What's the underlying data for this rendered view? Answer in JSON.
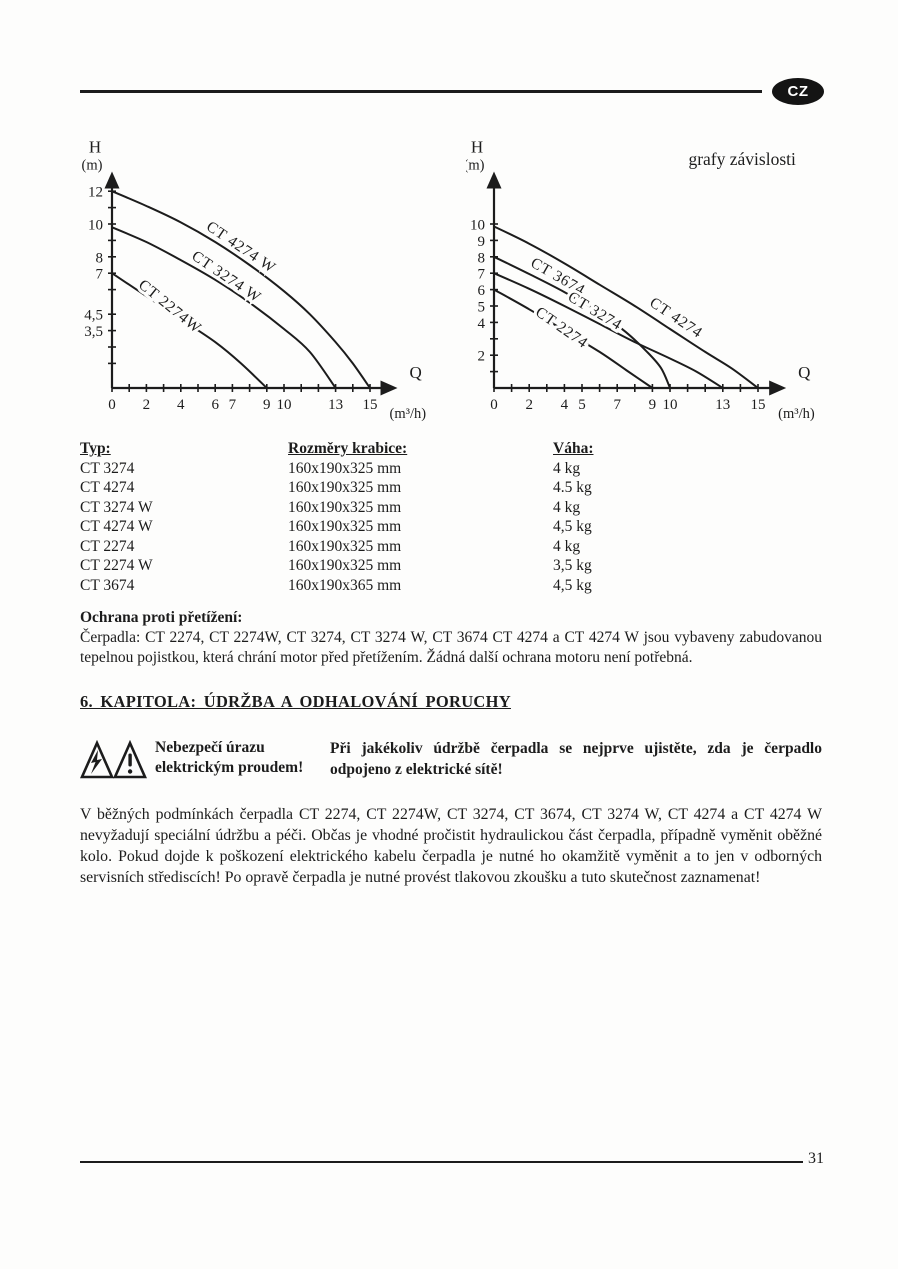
{
  "page": {
    "badge": "CZ",
    "number": "31"
  },
  "chart_data": [
    {
      "type": "line",
      "title": "",
      "ylabel": "H",
      "ylabel_unit": "(m)",
      "xlabel": "Q",
      "xlabel_unit": "(m³/h)",
      "xlim": [
        0,
        16.6
      ],
      "ylim": [
        0,
        13.2
      ],
      "grid": false,
      "xticks": [
        [
          0,
          "0"
        ],
        [
          1
        ],
        [
          2,
          "2"
        ],
        [
          3
        ],
        [
          4,
          "4"
        ],
        [
          5
        ],
        [
          6,
          "6"
        ],
        [
          7,
          "7"
        ],
        [
          8
        ],
        [
          9,
          "9"
        ],
        [
          10,
          "10"
        ],
        [
          11
        ],
        [
          12
        ],
        [
          13,
          "13"
        ],
        [
          14
        ],
        [
          15,
          "15"
        ]
      ],
      "yticks": [
        [
          12,
          "12"
        ],
        [
          11
        ],
        [
          10,
          "10"
        ],
        [
          9
        ],
        [
          8,
          "8"
        ],
        [
          7,
          "7"
        ],
        [
          6
        ],
        [
          4.5,
          "4,5"
        ],
        [
          3.5,
          "3,5"
        ],
        [
          2.5
        ],
        [
          1.5
        ]
      ],
      "series": [
        {
          "name": "CT 4274 W",
          "shutoff_head_m": 12,
          "max_flow_m3h": 15,
          "points": [
            [
              0,
              12
            ],
            [
              2,
              11.1
            ],
            [
              4,
              10.1
            ],
            [
              6,
              8.9
            ],
            [
              8,
              7.5
            ],
            [
              10,
              5.9
            ],
            [
              11.5,
              4.5
            ],
            [
              13,
              2.8
            ],
            [
              14,
              1.5
            ],
            [
              15,
              0
            ]
          ],
          "label_at": [
            7.35,
            8.35
          ],
          "label_rot": 34
        },
        {
          "name": "CT 3274 W",
          "shutoff_head_m": 9.8,
          "max_flow_m3h": 13,
          "points": [
            [
              0,
              9.8
            ],
            [
              2,
              8.9
            ],
            [
              4,
              7.8
            ],
            [
              6,
              6.6
            ],
            [
              8,
              5.2
            ],
            [
              10,
              3.6
            ],
            [
              11.5,
              2.2
            ],
            [
              13,
              0
            ]
          ],
          "label_at": [
            6.5,
            6.55
          ],
          "label_rot": 34
        },
        {
          "name": "CT 2274W",
          "shutoff_head_m": 7,
          "max_flow_m3h": 9,
          "points": [
            [
              0,
              7
            ],
            [
              2,
              5.6
            ],
            [
              4,
              4.2
            ],
            [
              6,
              2.8
            ],
            [
              7.5,
              1.5
            ],
            [
              9,
              0
            ]
          ],
          "label_at": [
            3.2,
            4.75
          ],
          "label_rot": 39
        }
      ]
    },
    {
      "type": "line",
      "title": "",
      "note": "grafy závislosti",
      "ylabel": "H",
      "ylabel_unit": "(m)",
      "xlabel": "Q",
      "xlabel_unit": "(m³/h)",
      "xlim": [
        0,
        16.6
      ],
      "ylim": [
        0,
        13.2
      ],
      "grid": false,
      "xticks": [
        [
          0,
          "0"
        ],
        [
          1
        ],
        [
          2,
          "2"
        ],
        [
          3
        ],
        [
          4,
          "4"
        ],
        [
          5,
          "5"
        ],
        [
          6
        ],
        [
          7,
          "7"
        ],
        [
          8
        ],
        [
          9,
          "9"
        ],
        [
          10,
          "10"
        ],
        [
          11
        ],
        [
          12
        ],
        [
          13,
          "13"
        ],
        [
          14
        ],
        [
          15,
          "15"
        ]
      ],
      "yticks": [
        [
          10,
          "10"
        ],
        [
          9,
          "9"
        ],
        [
          8,
          "8"
        ],
        [
          7,
          "7"
        ],
        [
          6,
          "6"
        ],
        [
          5,
          "5"
        ],
        [
          4,
          "4"
        ],
        [
          3
        ],
        [
          2,
          "2"
        ],
        [
          1
        ]
      ],
      "series": [
        {
          "name": "CT 4274",
          "shutoff_head_m": 9.85,
          "max_flow_m3h": 15,
          "points": [
            [
              0,
              9.85
            ],
            [
              2,
              8.8
            ],
            [
              4,
              7.6
            ],
            [
              6,
              6.3
            ],
            [
              8,
              5.0
            ],
            [
              10,
              3.6
            ],
            [
              12,
              2.2
            ],
            [
              13.5,
              1.2
            ],
            [
              15,
              0
            ]
          ],
          "label_at": [
            10.2,
            4.05
          ],
          "label_rot": 34
        },
        {
          "name": "CT 3674",
          "shutoff_head_m": 8,
          "max_flow_m3h": 10,
          "points": [
            [
              0,
              8
            ],
            [
              2,
              6.95
            ],
            [
              4,
              5.85
            ],
            [
              6,
              4.6
            ],
            [
              7.5,
              3.4
            ],
            [
              8.7,
              2.2
            ],
            [
              9.5,
              1.2
            ],
            [
              10,
              0
            ]
          ],
          "label_at": [
            3.5,
            6.55
          ],
          "label_rot": 30
        },
        {
          "name": "CT 3274",
          "shutoff_head_m": 7,
          "max_flow_m3h": 13,
          "points": [
            [
              0,
              7
            ],
            [
              2,
              6.05
            ],
            [
              4,
              5.0
            ],
            [
              6,
              3.9
            ],
            [
              8,
              2.8
            ],
            [
              10,
              1.8
            ],
            [
              11.5,
              1.0
            ],
            [
              13,
              0
            ]
          ],
          "label_at": [
            5.6,
            4.45
          ],
          "label_rot": 31
        },
        {
          "name": "CT 2274",
          "shutoff_head_m": 6,
          "max_flow_m3h": 9,
          "points": [
            [
              0,
              6
            ],
            [
              2,
              4.8
            ],
            [
              4,
              3.5
            ],
            [
              6,
              2.2
            ],
            [
              7.5,
              1.1
            ],
            [
              9,
              0
            ]
          ],
          "label_at": [
            3.7,
            3.45
          ],
          "label_rot": 35
        }
      ]
    }
  ],
  "table": {
    "headers": [
      "Typ:",
      "Rozměry krabice:",
      "Váha:"
    ],
    "rows": [
      [
        "CT 3274",
        "160x190x325 mm",
        "4 kg"
      ],
      [
        "CT 4274",
        "160x190x325 mm",
        "4.5 kg"
      ],
      [
        "CT 3274 W",
        "160x190x325 mm",
        "4 kg"
      ],
      [
        "CT 4274 W",
        "160x190x325 mm",
        "4,5 kg"
      ],
      [
        "CT 2274",
        "160x190x325 mm",
        "4 kg"
      ],
      [
        "CT 2274 W",
        "160x190x325 mm",
        "3,5 kg"
      ],
      [
        "CT 3674",
        "160x190x365 mm",
        "4,5 kg"
      ]
    ]
  },
  "overload": {
    "heading": "Ochrana proti přetížení:",
    "body": "Čerpadla: CT 2274, CT 2274W, CT 3274, CT 3274 W, CT 3674 CT 4274 a CT 4274 W jsou vybaveny zabudovanou tepelnou pojistkou, která chrání motor před přetížením. Žádná další ochrana motoru není potřebná."
  },
  "chapter_heading": "6. KAPITOLA:  ÚDRŽBA A ODHALOVÁNÍ PORUCHY",
  "warning": {
    "label_line1": "Nebezpečí úrazu",
    "label_line2": "elektrickým proudem!",
    "text": "Při jakékoliv údržbě čerpadla se nejprve ujistěte, zda je čerpadlo odpojeno z elektrické sítě!"
  },
  "maintenance_body": "V běžných podmínkách čerpadla CT 2274, CT 2274W, CT 3274, CT 3674, CT 3274 W, CT 4274 a CT 4274 W nevyžadují speciální údržbu a péči. Občas je vhodné pročistit hydraulickou část čerpadla, případně vyměnit oběžné kolo. Pokud dojde k poškození elektrického kabelu čerpadla je nutné ho okamžitě vyměnit a to jen v odborných servisních střediscích! Po opravě čerpadla je nutné provést tlakovou zkoušku a tuto skutečnost zaznamenat!",
  "colors": {
    "ink": "#1c1c1c",
    "badge_bg": "#141414",
    "badge_fg": "#ffffff",
    "paper": "#fdfdfc"
  }
}
